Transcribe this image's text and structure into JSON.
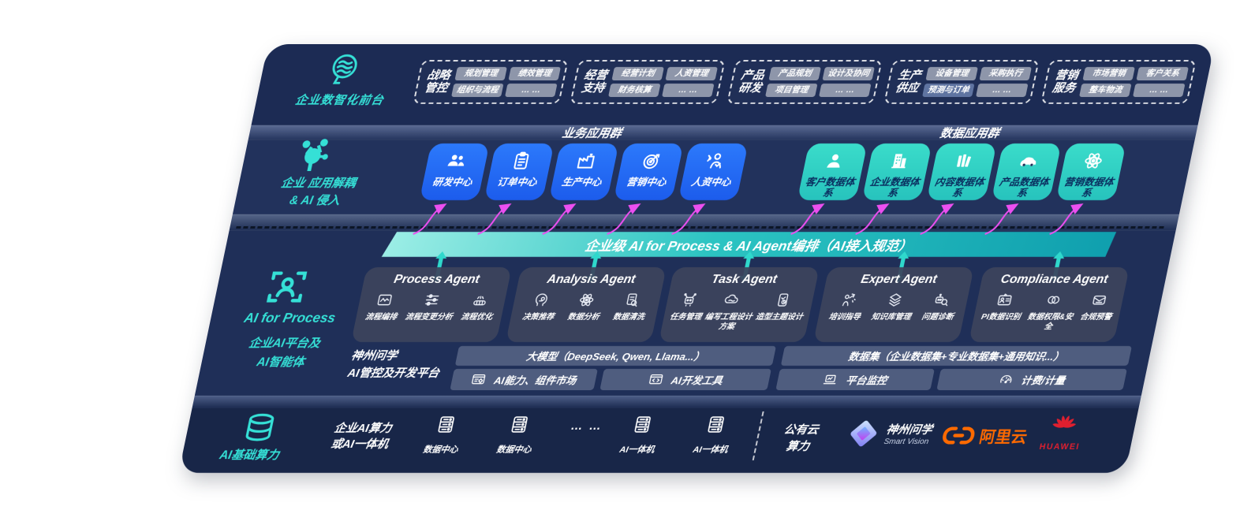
{
  "colors": {
    "accent_teal": "#35E0D6",
    "app_blue": "#1F66F2",
    "data_teal": "#2FD3C6",
    "arrow_pink": "#EC4FF0",
    "aliyun_orange": "#FF6A00",
    "huawei_red": "#E01F2F"
  },
  "front_layer": {
    "label": "企业数智化前台",
    "groups": [
      {
        "title_lines": [
          "战略",
          "管控"
        ],
        "items": [
          {
            "label": "规划管理"
          },
          {
            "label": "绩效管理"
          },
          {
            "label": "组织与流程"
          },
          {
            "label": "… …"
          }
        ]
      },
      {
        "title_lines": [
          "经营",
          "支持"
        ],
        "items": [
          {
            "label": "经营计划"
          },
          {
            "label": "人资管理"
          },
          {
            "label": "财务核算"
          },
          {
            "label": "… …"
          }
        ]
      },
      {
        "title_lines": [
          "产品",
          "研发"
        ],
        "items": [
          {
            "label": "产品规划"
          },
          {
            "label": "设计及协同"
          },
          {
            "label": "项目管理"
          },
          {
            "label": "… …"
          }
        ]
      },
      {
        "title_lines": [
          "生产",
          "供应"
        ],
        "items": [
          {
            "label": "设备管理"
          },
          {
            "label": "采购执行"
          },
          {
            "label": "预测与订单",
            "highlight": true
          },
          {
            "label": "… …"
          }
        ]
      },
      {
        "title_lines": [
          "营销",
          "服务"
        ],
        "items": [
          {
            "label": "市场营销"
          },
          {
            "label": "客户关系"
          },
          {
            "label": "整车物流"
          },
          {
            "label": "… …"
          }
        ]
      }
    ]
  },
  "decouple_layer": {
    "label_lines": [
      "企业 应用解耦",
      "& AI 侵入"
    ],
    "business_group": {
      "header": "业务应用群",
      "boxes": [
        {
          "label": "研发中心",
          "icon": "team-icon"
        },
        {
          "label": "订单中心",
          "icon": "clipboard-icon"
        },
        {
          "label": "生产中心",
          "icon": "factory-icon"
        },
        {
          "label": "营销中心",
          "icon": "target-icon"
        },
        {
          "label": "人资中心",
          "icon": "hr-icon"
        }
      ]
    },
    "data_group": {
      "header": "数据应用群",
      "boxes": [
        {
          "label": "客户数据体系",
          "icon": "user-icon"
        },
        {
          "label": "企业数据体系",
          "icon": "building-icon"
        },
        {
          "label": "内容数据体系",
          "icon": "books-icon"
        },
        {
          "label": "产品数据体系",
          "icon": "car-icon"
        },
        {
          "label": "营销数据体系",
          "icon": "atom-icon"
        }
      ]
    }
  },
  "orchestration_bar": {
    "label": "企业级 AI for Process & AI Agent编排（AI接入规范）"
  },
  "ai_layer": {
    "title": "AI for Process",
    "sub_lines": [
      "企业AI平台及",
      "AI智能体"
    ],
    "agents": [
      {
        "title": "Process Agent",
        "items": [
          {
            "label": "流程编排",
            "icon": "panel-icon"
          },
          {
            "label": "流程变更分析",
            "icon": "sliders-icon"
          },
          {
            "label": "流程优化",
            "icon": "conveyor-icon"
          }
        ]
      },
      {
        "title": "Analysis Agent",
        "items": [
          {
            "label": "决策推荐",
            "icon": "head-icon"
          },
          {
            "label": "数据分析",
            "icon": "atom-icon"
          },
          {
            "label": "数据清洗",
            "icon": "doc-icon"
          }
        ]
      },
      {
        "title": "Task Agent",
        "items": [
          {
            "label": "任务管理",
            "icon": "robot-icon"
          },
          {
            "label": "编写工程设计方案",
            "icon": "cloud-icon"
          },
          {
            "label": "造型主题设计",
            "icon": "tablet-icon"
          }
        ]
      },
      {
        "title": "Expert Agent",
        "items": [
          {
            "label": "培训指导",
            "icon": "present-icon"
          },
          {
            "label": "知识库管理",
            "icon": "layers-icon"
          },
          {
            "label": "问题诊断",
            "icon": "diag-icon"
          }
        ]
      },
      {
        "title": "Compliance Agent",
        "items": [
          {
            "label": "PI数据识别",
            "icon": "idcard-icon"
          },
          {
            "label": "数据权限&安全",
            "icon": "rings-icon"
          },
          {
            "label": "合规预警",
            "icon": "mail-icon"
          }
        ]
      }
    ],
    "platform": {
      "label_lines": [
        "神州问学",
        "AI管控及开发平台"
      ],
      "left": {
        "bar": "大模型（DeepSeek, Qwen, Llama...）",
        "cells": [
          {
            "label": "AI能力、组件市场",
            "icon": "window-gear-icon"
          },
          {
            "label": "AI开发工具",
            "icon": "window-code-icon"
          }
        ]
      },
      "right": {
        "bar": "数据集（企业数据集+专业数据集+通用知识...）",
        "cells": [
          {
            "label": "平台监控",
            "icon": "laptop-icon"
          },
          {
            "label": "计费/计量",
            "icon": "gauge-icon"
          }
        ]
      }
    }
  },
  "infra_layer": {
    "label": "AI基础算力",
    "compute_label_lines": [
      "企业AI算力",
      "或AI一体机"
    ],
    "nodes": [
      {
        "label": "数据中心",
        "icon": "server-icon"
      },
      {
        "label": "数据中心",
        "icon": "server-icon"
      },
      {
        "label": "… …",
        "type": "dots"
      },
      {
        "label": "AI一体机",
        "icon": "server-icon"
      },
      {
        "label": "AI一体机",
        "icon": "server-icon"
      }
    ],
    "public_cloud_lines": [
      "公有云",
      "算力"
    ],
    "vendors": [
      {
        "name": "神州问学",
        "sub": "Smart Vision"
      },
      {
        "name": "阿里云"
      },
      {
        "name": "HUAWEI"
      }
    ]
  }
}
